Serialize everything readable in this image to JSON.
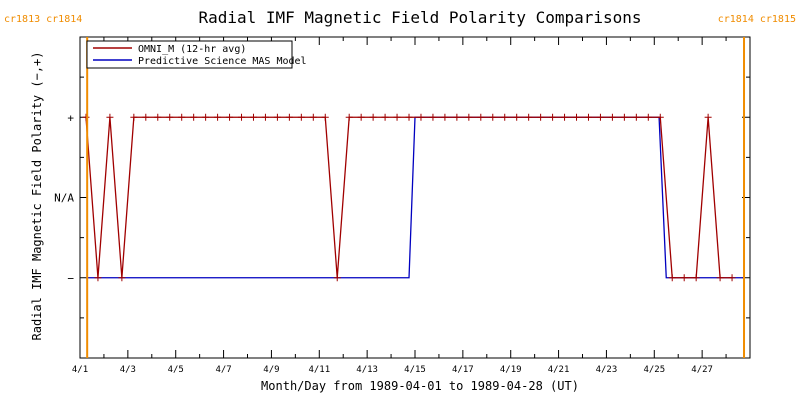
{
  "chart_data": {
    "type": "line",
    "title": "Radial IMF Magnetic Field Polarity Comparisons",
    "xlabel": "Month/Day from 1989-04-01 to 1989-04-28 (UT)",
    "ylabel": "Radial IMF Magnetic Field Polarity (−,+)",
    "x_tick_labels": [
      "4/1",
      "4/3",
      "4/5",
      "4/7",
      "4/9",
      "4/11",
      "4/13",
      "4/15",
      "4/17",
      "4/19",
      "4/21",
      "4/23",
      "4/25",
      "4/27"
    ],
    "x_tick_days": [
      1,
      3,
      5,
      7,
      9,
      11,
      13,
      15,
      17,
      19,
      21,
      23,
      25,
      27
    ],
    "xlim_days": [
      1.0,
      29.0
    ],
    "y_tick_labels": [
      "+",
      "N/A",
      "−"
    ],
    "y_tick_values": [
      1,
      0,
      -1
    ],
    "ylim": [
      -2,
      2
    ],
    "carrington_markers": [
      {
        "day": 1.3,
        "label": "cr1813 cr1814",
        "anchor": "left"
      },
      {
        "day": 28.75,
        "label": "cr1814 cr1815",
        "anchor": "right"
      }
    ],
    "series": [
      {
        "name": "OMNI_M (12-hr avg)",
        "color": "#a00000",
        "markers": true,
        "points": [
          [
            1.25,
            1
          ],
          [
            1.75,
            -1
          ],
          [
            2.25,
            1
          ],
          [
            2.75,
            -1
          ],
          [
            3.25,
            1
          ],
          [
            3.75,
            1
          ],
          [
            4.25,
            1
          ],
          [
            4.75,
            1
          ],
          [
            5.25,
            1
          ],
          [
            5.75,
            1
          ],
          [
            6.25,
            1
          ],
          [
            6.75,
            1
          ],
          [
            7.25,
            1
          ],
          [
            7.75,
            1
          ],
          [
            8.25,
            1
          ],
          [
            8.75,
            1
          ],
          [
            9.25,
            1
          ],
          [
            9.75,
            1
          ],
          [
            10.25,
            1
          ],
          [
            10.75,
            1
          ],
          [
            11.25,
            1
          ],
          [
            11.75,
            -1
          ],
          [
            12.25,
            1
          ],
          [
            12.75,
            1
          ],
          [
            13.25,
            1
          ],
          [
            13.75,
            1
          ],
          [
            14.25,
            1
          ],
          [
            14.75,
            1
          ],
          [
            15.25,
            1
          ],
          [
            15.75,
            1
          ],
          [
            16.25,
            1
          ],
          [
            16.75,
            1
          ],
          [
            17.25,
            1
          ],
          [
            17.75,
            1
          ],
          [
            18.25,
            1
          ],
          [
            18.75,
            1
          ],
          [
            19.25,
            1
          ],
          [
            19.75,
            1
          ],
          [
            20.25,
            1
          ],
          [
            20.75,
            1
          ],
          [
            21.25,
            1
          ],
          [
            21.75,
            1
          ],
          [
            22.25,
            1
          ],
          [
            22.75,
            1
          ],
          [
            23.25,
            1
          ],
          [
            23.75,
            1
          ],
          [
            24.25,
            1
          ],
          [
            24.75,
            1
          ],
          [
            25.25,
            1
          ],
          [
            25.75,
            -1
          ],
          [
            26.25,
            -1
          ],
          [
            26.75,
            -1
          ],
          [
            27.25,
            1
          ],
          [
            27.75,
            -1
          ],
          [
            28.25,
            -1
          ]
        ]
      },
      {
        "name": "Predictive Science MAS Model",
        "color": "#0000c0",
        "markers": false,
        "points": [
          [
            1.25,
            -1
          ],
          [
            14.75,
            -1
          ],
          [
            15.0,
            1
          ],
          [
            25.2,
            1
          ],
          [
            25.5,
            -1
          ],
          [
            28.7,
            -1
          ]
        ]
      }
    ]
  }
}
